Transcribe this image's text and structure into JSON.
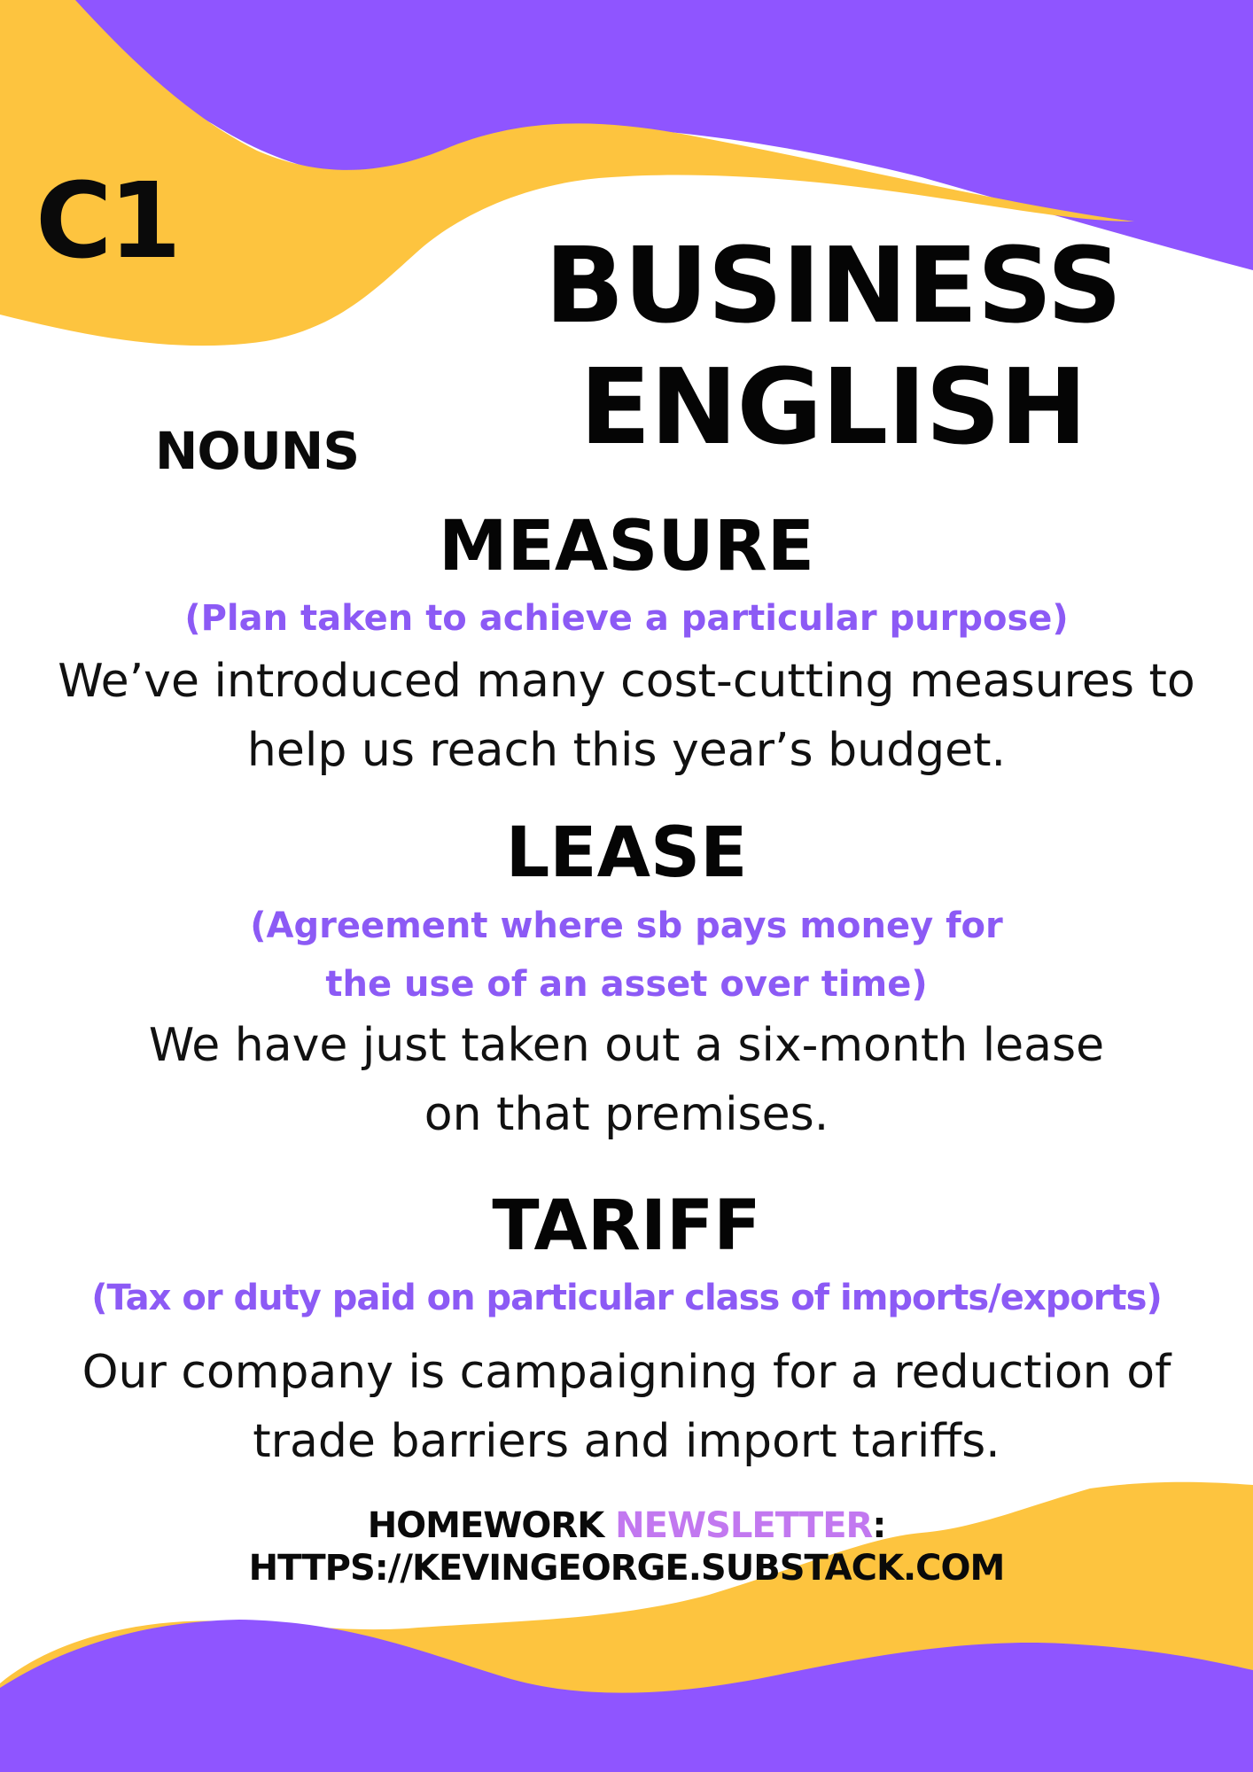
{
  "colors": {
    "purple": "#8f55ff",
    "yellow": "#fdc43f",
    "definition_purple": "#8c5af5",
    "newsletter_pink": "#c278f0",
    "text": "#050505",
    "background": "#ffffff"
  },
  "header": {
    "level": "C1",
    "title_line1": "BUSINESS",
    "title_line2": "ENGLISH",
    "category": "NOUNS"
  },
  "entries": [
    {
      "term": "MEASURE",
      "definition_lines": [
        "(Plan taken to achieve a particular purpose)"
      ],
      "example_lines": [
        "We’ve introduced many cost-cutting measures to",
        "help us reach this year’s budget."
      ]
    },
    {
      "term": "LEASE",
      "definition_lines": [
        "(Agreement where sb pays money for",
        "the use of an asset over time)"
      ],
      "example_lines": [
        "We have just taken out a six-month lease",
        "on that premises."
      ]
    },
    {
      "term": "TARIFF",
      "definition_lines": [
        "(Tax or duty paid on particular class of imports/exports)"
      ],
      "example_lines": [
        "Our company is campaigning for a reduction of",
        "trade barriers and import tariffs."
      ]
    }
  ],
  "footer": {
    "homework_label": "HOMEWORK",
    "newsletter_label": "NEWSLETTER",
    "colon": ":",
    "url": "HTTPS://KEVINGEORGE.SUBSTACK.COM"
  }
}
